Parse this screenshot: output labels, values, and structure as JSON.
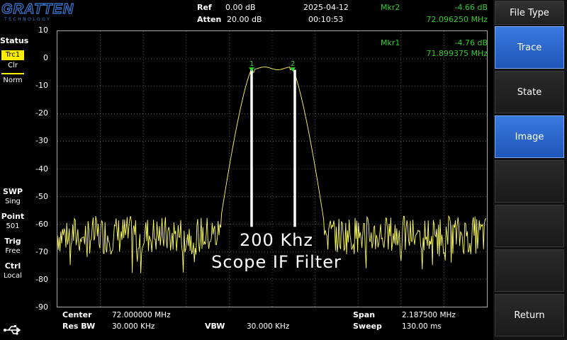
{
  "brand": {
    "name": "GRATTEN",
    "tagline": "TECHNOLOGY"
  },
  "header": {
    "ref_label": "Ref",
    "ref_value": "0.00 dB",
    "atten_label": "Atten",
    "atten_value": "20.00 dB",
    "date": "2025-04-12",
    "time": "00:10:53",
    "mkr2": {
      "label": "Mkr2",
      "amplitude": "-4.66 dB",
      "frequency": "72.096250 MHz"
    },
    "mkr1": {
      "label": "Mkr1",
      "amplitude": "-4.76 dB",
      "frequency": "71.899375 MHz"
    }
  },
  "left_panel": {
    "status_label": "Status",
    "trace_badge": "Trc1",
    "clr": "Clr",
    "norm": "Norm",
    "swp_label": "SWP",
    "swp_value": "Sing",
    "point_label": "Point",
    "point_value": "501",
    "trig_label": "Trig",
    "trig_value": "Free",
    "ctrl_label": "Ctrl",
    "ctrl_value": "Local",
    "usb_icon": "usb-icon"
  },
  "y_axis": {
    "ticks": [
      "10",
      "0",
      "-10",
      "-20",
      "-30",
      "-40",
      "-50",
      "-60",
      "-70",
      "-80",
      "-90"
    ]
  },
  "markers": [
    "1",
    "2"
  ],
  "annotation": {
    "line1": "200 Khz",
    "line2": "Scope IF Filter"
  },
  "footer": {
    "center_label": "Center",
    "center_value": "72.000000 MHz",
    "span_label": "Span",
    "span_value": "2.187500 MHz",
    "resbw_label": "Res BW",
    "resbw_value": "30.000 KHz",
    "vbw_label": "VBW",
    "vbw_value": "30.000 KHz",
    "sweep_label": "Sweep",
    "sweep_value": "130.00 ms"
  },
  "softkeys": {
    "title": "File Type",
    "items": [
      {
        "label": "Trace",
        "active": true
      },
      {
        "label": "State",
        "active": false
      },
      {
        "label": "Image",
        "active": true
      },
      {
        "label": "",
        "active": false
      },
      {
        "label": "",
        "active": false
      },
      {
        "label": "",
        "active": false
      },
      {
        "label": "Return",
        "active": false
      }
    ]
  },
  "colors": {
    "trace": "#ffff66",
    "marker": "#33cc33",
    "softkey_active": "#2f6cd3",
    "grid": "#888888"
  }
}
